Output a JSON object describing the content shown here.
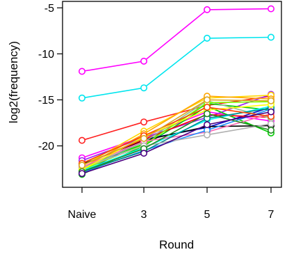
{
  "chart_data": {
    "type": "line",
    "title": "",
    "xlabel": "Round",
    "ylabel": "log2(frequency)",
    "x": [
      "Naive",
      "3",
      "5",
      "7"
    ],
    "x_ticks": [
      "Naive",
      "3",
      "5",
      "7"
    ],
    "y_ticks": [
      "-5",
      "-10",
      "-15",
      "-20"
    ],
    "ylim": [
      -24.5,
      -4.3
    ],
    "y_tick_values": [
      -5,
      -10,
      -15,
      -20
    ],
    "grid": false,
    "legend": "none",
    "marker": "open-circle",
    "series": [
      {
        "color": "#ff00ff",
        "values": [
          -11.9,
          -10.8,
          -5.2,
          -5.1
        ]
      },
      {
        "color": "#00e5ee",
        "values": [
          -14.8,
          -13.7,
          -8.3,
          -8.2
        ]
      },
      {
        "color": "#ff2020",
        "values": [
          -19.4,
          -17.4,
          -15.6,
          -14.6
        ]
      },
      {
        "color": "#ff00ff",
        "values": [
          -21.3,
          -19.0,
          -16.3,
          -17.3
        ]
      },
      {
        "color": "#a020f0",
        "values": [
          -21.6,
          -19.1,
          -16.9,
          -14.4
        ]
      },
      {
        "color": "#00cc00",
        "values": [
          -22.3,
          -19.8,
          -15.4,
          -16.1
        ]
      },
      {
        "color": "#00cc00",
        "values": [
          -23.1,
          -20.0,
          -15.7,
          -18.6
        ]
      },
      {
        "color": "#0000cc",
        "values": [
          -23.0,
          -19.3,
          -18.0,
          -15.8
        ]
      },
      {
        "color": "#000000",
        "values": [
          -22.0,
          -19.4,
          -17.9,
          -17.8
        ]
      },
      {
        "color": "#ff0000",
        "values": [
          -22.1,
          -19.3,
          -16.6,
          -16.9
        ]
      },
      {
        "color": "#ffd700",
        "values": [
          -22.2,
          -18.4,
          -14.8,
          -14.5
        ]
      },
      {
        "color": "#ffa500",
        "values": [
          -22.4,
          -18.7,
          -14.6,
          -14.9
        ]
      },
      {
        "color": "#8fbc8f",
        "values": [
          -22.5,
          -19.6,
          -15.1,
          -17.0
        ]
      },
      {
        "color": "#7fff00",
        "values": [
          -22.6,
          -19.9,
          -15.3,
          -15.2
        ]
      },
      {
        "color": "#00ffff",
        "values": [
          -22.7,
          -20.2,
          -17.2,
          -15.7
        ]
      },
      {
        "color": "#ff69b4",
        "values": [
          -22.3,
          -19.5,
          -18.5,
          -16.5
        ]
      },
      {
        "color": "#1e90ff",
        "values": [
          -22.9,
          -20.5,
          -18.3,
          -16.0
        ]
      },
      {
        "color": "#008b8b",
        "values": [
          -22.8,
          -20.6,
          -17.0,
          -15.9
        ]
      },
      {
        "color": "#b0b0b0",
        "values": [
          -22.4,
          -20.0,
          -18.8,
          -17.6
        ]
      },
      {
        "color": "#ffff00",
        "values": [
          -22.6,
          -19.0,
          -16.1,
          -15.5
        ]
      },
      {
        "color": "#228b22",
        "values": [
          -22.8,
          -20.3,
          -16.5,
          -18.3
        ]
      },
      {
        "color": "#ff4500",
        "values": [
          -21.9,
          -18.9,
          -15.8,
          -16.8
        ]
      },
      {
        "color": "#4b0082",
        "values": [
          -23.0,
          -20.8,
          -17.7,
          -16.3
        ]
      },
      {
        "color": "#daa520",
        "values": [
          -22.1,
          -19.2,
          -15.0,
          -15.1
        ]
      }
    ]
  }
}
